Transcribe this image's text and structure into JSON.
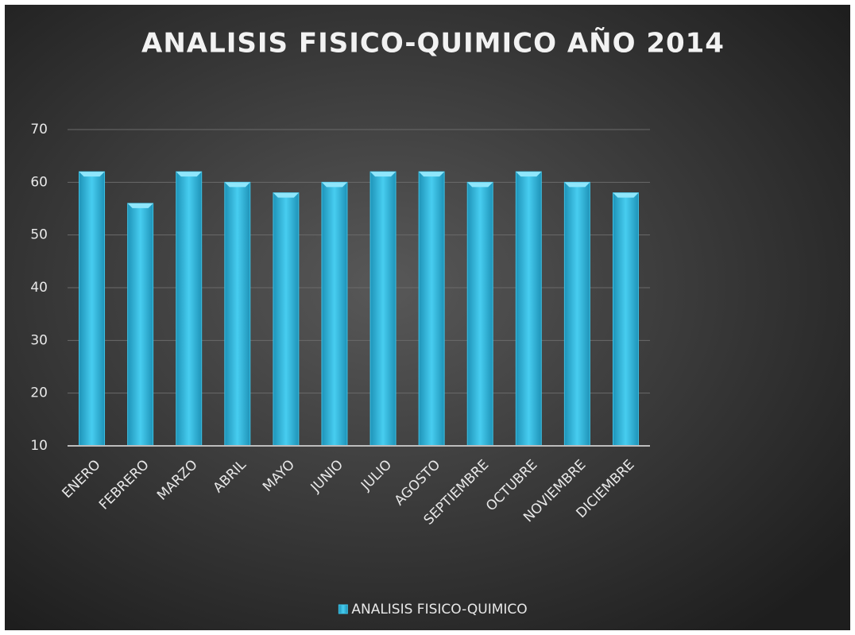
{
  "chart_data": {
    "type": "bar",
    "title": "ANALISIS FISICO-QUIMICO AÑO 2014",
    "categories": [
      "ENERO",
      "FEBRERO",
      "MARZO",
      "ABRIL",
      "MAYO",
      "JUNIO",
      "JULIO",
      "AGOSTO",
      "SEPTIEMBRE",
      "OCTUBRE",
      "NOVIEMBRE",
      "DICIEMBRE"
    ],
    "series": [
      {
        "name": "ANALISIS FISICO-QUIMICO",
        "color": "#3cc2e6",
        "values": [
          62,
          56,
          62,
          60,
          58,
          60,
          62,
          62,
          60,
          62,
          60,
          58
        ]
      }
    ],
    "ylim": [
      10,
      70
    ],
    "yticks": [
      10,
      20,
      30,
      40,
      50,
      60,
      70
    ],
    "grid": true,
    "legend": "bottom"
  }
}
